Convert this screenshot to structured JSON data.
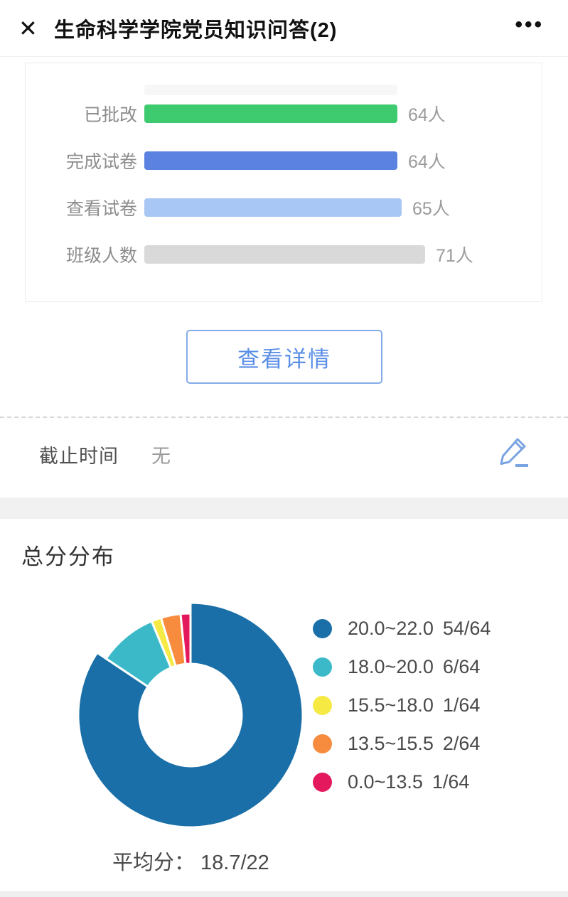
{
  "header": {
    "title": "生命科学学院党员知识问答(2)",
    "close_glyph": "✕",
    "more_glyph": "•••"
  },
  "stats_panel": {
    "max_value": 71,
    "rows": [
      {
        "label": "已批改",
        "value": 64,
        "value_text": "64人",
        "color": "#3ecb70"
      },
      {
        "label": "完成试卷",
        "value": 64,
        "value_text": "64人",
        "color": "#5b82e0"
      },
      {
        "label": "查看试卷",
        "value": 65,
        "value_text": "65人",
        "color": "#a9c7f5"
      },
      {
        "label": "班级人数",
        "value": 71,
        "value_text": "71人",
        "color": "#d9d9d9"
      }
    ]
  },
  "details_button": {
    "label": "查看详情"
  },
  "deadline": {
    "label": "截止时间",
    "value": "无",
    "edit_icon": "pencil-icon"
  },
  "score_section": {
    "title": "总分分布",
    "average_label": "平均分：",
    "average_value": "18.7/22"
  },
  "chart_data": {
    "type": "pie",
    "donut": true,
    "title": "总分分布",
    "total": 64,
    "legend_position": "right",
    "series": [
      {
        "label": "20.0~22.0",
        "count": 54,
        "display": "54/64",
        "color": "#1a6fa8",
        "emphasized": true
      },
      {
        "label": "18.0~20.0",
        "count": 6,
        "display": "6/64",
        "color": "#3cb9c8",
        "emphasized": false
      },
      {
        "label": "15.5~18.0",
        "count": 1,
        "display": "1/64",
        "color": "#f7e944",
        "emphasized": false
      },
      {
        "label": "13.5~15.5",
        "count": 2,
        "display": "2/64",
        "color": "#f78c3e",
        "emphasized": false
      },
      {
        "label": "0.0~13.5",
        "count": 1,
        "display": "1/64",
        "color": "#e4185c",
        "emphasized": false
      }
    ],
    "average_text": "平均分： 18.7/22"
  }
}
